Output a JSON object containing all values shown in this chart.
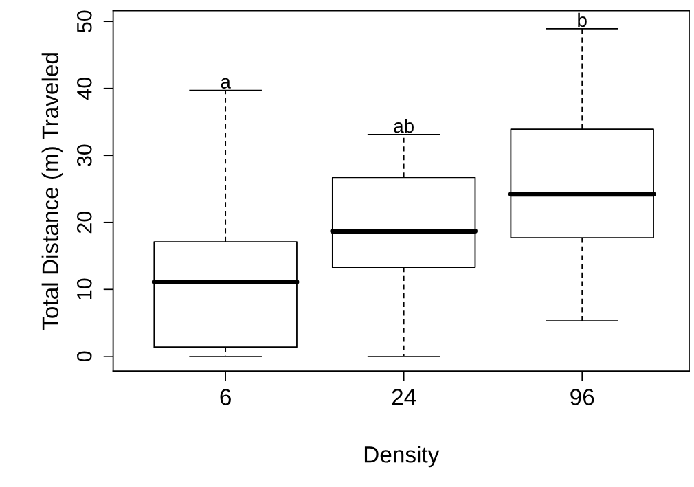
{
  "chart_data": {
    "type": "box",
    "xlabel": "Density",
    "ylabel": "Total Distance (m) Traveled",
    "categories": [
      "6",
      "24",
      "96"
    ],
    "boxes": [
      {
        "low": 0,
        "q1": 1.4,
        "median": 11.1,
        "q3": 17.1,
        "high": 39.7
      },
      {
        "low": 0,
        "q1": 13.3,
        "median": 18.7,
        "q3": 26.7,
        "high": 33.1
      },
      {
        "low": 5.3,
        "q1": 17.7,
        "median": 24.2,
        "q3": 33.9,
        "high": 48.9
      }
    ],
    "ylim": [
      -2.2,
      51.6
    ],
    "yticks": [
      0,
      10,
      20,
      30,
      40,
      50
    ],
    "annotations": [
      {
        "text": "a",
        "x": "6",
        "y": 39.7
      },
      {
        "text": "ab",
        "x": "24",
        "y": 33.1
      },
      {
        "text": "b",
        "x": "96",
        "y": 48.9
      }
    ],
    "grid": false,
    "legend": false
  }
}
